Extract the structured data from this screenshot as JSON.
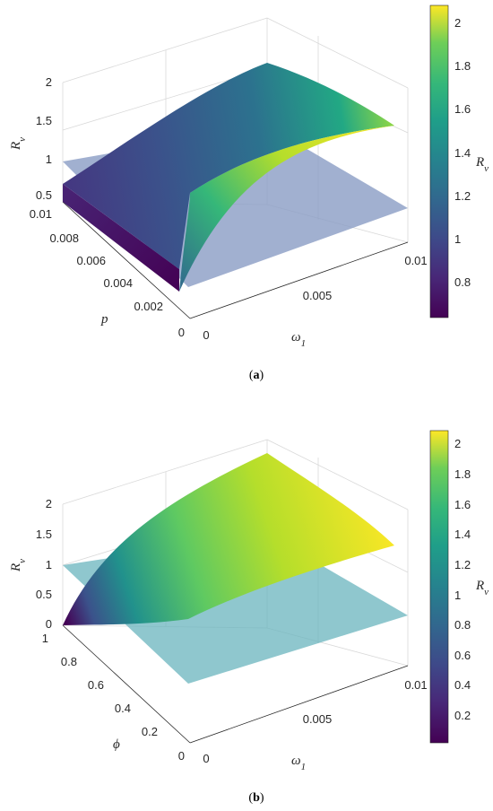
{
  "chart_data": [
    {
      "type": "surface3d",
      "subcaption_open": "(",
      "subcaption_letter": "a",
      "subcaption_close": ")",
      "zlabel": "R",
      "zlabel_sub": "v",
      "xlabel": "ω",
      "xlabel_sub": "1",
      "ylabel": "p",
      "colorbar_label": "R",
      "colorbar_label_sub": "v",
      "x_ticks": [
        "0",
        "0.005",
        "0.01"
      ],
      "y_ticks": [
        "0",
        "0.002",
        "0.004",
        "0.006",
        "0.008",
        "0.01"
      ],
      "z_ticks": [
        "0.5",
        "1",
        "1.5",
        "2"
      ],
      "colorbar_ticks": [
        "0.8",
        "1",
        "1.2",
        "1.4",
        "1.6",
        "1.8",
        "2"
      ],
      "xlim": [
        0,
        0.01
      ],
      "ylim": [
        0,
        0.01
      ],
      "zlim": [
        0.5,
        2
      ],
      "clim": [
        0.62,
        2.07
      ],
      "reference_plane_z": 1,
      "plane_color": "#8a9cc4",
      "corner_values": {
        "w0_p0": 0.62,
        "w0_p001": 0.62,
        "w001_p0": 1.55,
        "w001_p001": 1.55
      },
      "surface_profile": [
        {
          "w1": 0.0,
          "p_low": 0.62,
          "p_high": 0.62
        },
        {
          "w1": 0.002,
          "p_low": 1.0,
          "p_high": 0.9
        },
        {
          "w1": 0.005,
          "p_low": 1.3,
          "p_high": 1.25
        },
        {
          "w1": 0.01,
          "p_low": 1.55,
          "p_high": 1.55
        }
      ]
    },
    {
      "type": "surface3d",
      "subcaption_open": "(",
      "subcaption_letter": "b",
      "subcaption_close": ")",
      "zlabel": "R",
      "zlabel_sub": "v",
      "xlabel": "ω",
      "xlabel_sub": "1",
      "ylabel": "ϕ",
      "colorbar_label": "R",
      "colorbar_label_sub": "v",
      "x_ticks": [
        "0",
        "0.005",
        "0.01"
      ],
      "y_ticks": [
        "0",
        "0.2",
        "0.4",
        "0.6",
        "0.8",
        "1"
      ],
      "z_ticks": [
        "0",
        "0.5",
        "1",
        "1.5",
        "2"
      ],
      "colorbar_ticks": [
        "0.2",
        "0.4",
        "0.6",
        "0.8",
        "1",
        "1.2",
        "1.4",
        "1.6",
        "1.8",
        "2"
      ],
      "xlim": [
        0,
        0.01
      ],
      "ylim": [
        0,
        1
      ],
      "zlim": [
        0,
        2
      ],
      "clim": [
        0.03,
        2.07
      ],
      "reference_plane_z": 1,
      "plane_color": "#6ab4be",
      "corner_values": {
        "w0_phi0": 0.0,
        "w0_phi1": 0.0,
        "w001_phi0": 2.07,
        "w001_phi1": 2.07
      },
      "surface_profile": [
        {
          "w1": 0.0,
          "phi_low": 0.0,
          "phi_high": 0.0
        },
        {
          "w1": 0.002,
          "phi_low": 1.3,
          "phi_high": 1.2
        },
        {
          "w1": 0.005,
          "phi_low": 1.75,
          "phi_high": 1.7
        },
        {
          "w1": 0.01,
          "phi_low": 2.07,
          "phi_high": 2.07
        }
      ]
    }
  ]
}
